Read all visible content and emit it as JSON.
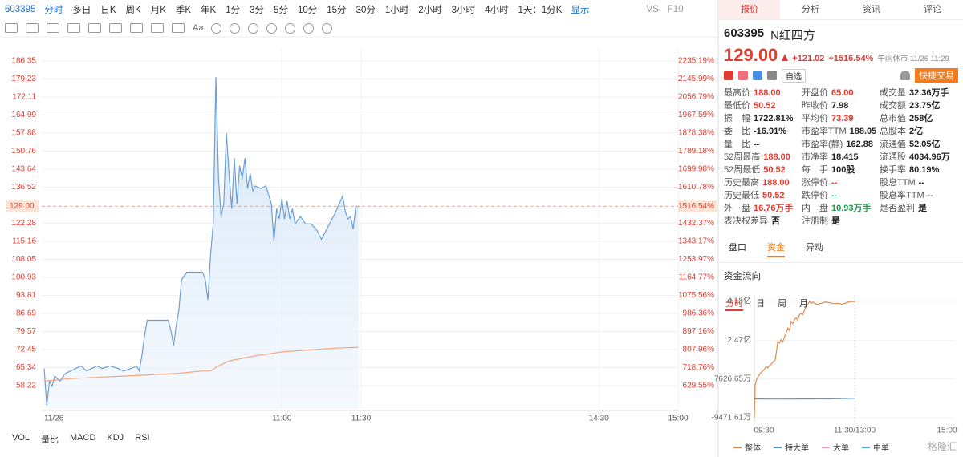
{
  "toolbar": {
    "code": "603395",
    "periods": [
      "分时",
      "多日",
      "日K",
      "周K",
      "月K",
      "季K",
      "年K",
      "1分",
      "3分",
      "5分",
      "10分",
      "15分",
      "30分",
      "1小时",
      "2小时",
      "3小时",
      "4小时",
      "1天：1分K"
    ],
    "display": "显示",
    "vs": "VS",
    "f10": "F10",
    "text_tool": "Aa"
  },
  "indicators": [
    "VOL",
    "量比",
    "MACD",
    "KDJ",
    "RSI"
  ],
  "chart_data": [
    {
      "type": "line",
      "xlim": [
        0,
        240
      ],
      "ylim": [
        49.05,
        191.41
      ],
      "y2lim": [
        514.66,
        2298.62
      ],
      "grid": true,
      "xticks": [
        {
          "value": 0,
          "label": "11/26"
        },
        {
          "value": 90,
          "label": "11:00"
        },
        {
          "value": 120,
          "label": "11:30"
        },
        {
          "value": 210,
          "label": "14:30"
        },
        {
          "value": 240,
          "label": "15:00"
        }
      ],
      "yticks": [
        186.35,
        179.23,
        172.11,
        164.99,
        157.88,
        150.76,
        143.64,
        136.52,
        122.28,
        115.16,
        108.05,
        100.93,
        93.81,
        86.69,
        79.57,
        72.45,
        65.34,
        58.22
      ],
      "y2ticks": [
        {
          "value": 2235.19,
          "label": "2235.19%"
        },
        {
          "value": 2145.99,
          "label": "2145.99%"
        },
        {
          "value": 2056.79,
          "label": "2056.79%"
        },
        {
          "value": 1967.59,
          "label": "1967.59%"
        },
        {
          "value": 1878.38,
          "label": "1878.38%"
        },
        {
          "value": 1789.18,
          "label": "1789.18%"
        },
        {
          "value": 1699.98,
          "label": "1699.98%"
        },
        {
          "value": 1610.78,
          "label": "1610.78%"
        },
        {
          "value": 1432.37,
          "label": "1432.37%"
        },
        {
          "value": 1343.17,
          "label": "1343.17%"
        },
        {
          "value": 1253.97,
          "label": "1253.97%"
        },
        {
          "value": 1164.77,
          "label": "1164.77%"
        },
        {
          "value": 1075.56,
          "label": "1075.56%"
        },
        {
          "value": 986.36,
          "label": "986.36%"
        },
        {
          "value": 897.16,
          "label": "897.16%"
        },
        {
          "value": 807.96,
          "label": "807.96%"
        },
        {
          "value": 718.76,
          "label": "718.76%"
        },
        {
          "value": 629.55,
          "label": "629.55%"
        }
      ],
      "reference": {
        "value": 129,
        "label": "129.00",
        "pct_label": "1516.54%",
        "color": "#f4a582"
      },
      "series": [
        {
          "color": "#6a9fd8",
          "area": true,
          "x": [
            0,
            1,
            2,
            3,
            4,
            6,
            8,
            10,
            12,
            14,
            16,
            18,
            20,
            22,
            25,
            28,
            30,
            33,
            35,
            36,
            37,
            38,
            39,
            42,
            47,
            48,
            49,
            50,
            51,
            52,
            54,
            58,
            60,
            61,
            62,
            63,
            64,
            65,
            66,
            67,
            68,
            69,
            70,
            71,
            72,
            73,
            74,
            75,
            76,
            77,
            78,
            79,
            80,
            82,
            84,
            86,
            87,
            88,
            89,
            90,
            91,
            92,
            93,
            94,
            95,
            97,
            99,
            101,
            103,
            105,
            107,
            110,
            113,
            114,
            115,
            116,
            117,
            118,
            119
          ],
          "values": [
            65,
            50.52,
            60,
            58,
            62,
            60,
            63,
            64,
            65,
            66,
            64,
            65,
            66,
            65,
            66,
            65,
            64,
            65,
            66,
            64,
            70,
            78,
            84,
            84,
            84,
            80,
            74,
            82,
            88,
            100,
            103,
            103,
            103,
            100,
            92,
            110,
            122,
            180,
            140,
            125,
            130,
            158,
            142,
            128,
            148,
            130,
            145,
            140,
            148,
            136,
            142,
            135,
            137,
            136,
            137,
            130,
            115,
            128,
            124,
            132,
            124,
            131,
            124,
            128,
            122,
            125,
            122,
            122,
            120,
            116,
            120,
            126,
            133,
            127,
            124,
            125,
            120,
            129,
            129
          ]
        },
        {
          "color": "#f4a582",
          "x": [
            0,
            10,
            30,
            50,
            60,
            63,
            66,
            70,
            80,
            90,
            100,
            110,
            119
          ],
          "values": [
            60,
            61,
            62,
            63,
            64,
            64,
            66,
            68,
            70,
            71.5,
            72.3,
            73,
            73.39
          ]
        }
      ]
    },
    {
      "type": "line",
      "title": "资金流向",
      "periods": [
        "分时",
        "日",
        "周",
        "月"
      ],
      "xlim": [
        0,
        240
      ],
      "ylim": [
        -9471.61,
        41800
      ],
      "xticks": [
        {
          "value": 0,
          "label": "09:30"
        },
        {
          "value": 120,
          "label": "11:30/13:00"
        },
        {
          "value": 240,
          "label": "15:00"
        }
      ],
      "yticks": [
        {
          "value": 41800,
          "label": "4.18亿"
        },
        {
          "value": 24700,
          "label": "2.47亿"
        },
        {
          "value": 7626.65,
          "label": "7626.65万"
        },
        {
          "value": -9471.61,
          "label": "-9471.61万"
        }
      ],
      "series": [
        {
          "name": "整体",
          "color": "#e08a4e",
          "x": [
            0,
            1,
            3,
            5,
            8,
            10,
            12,
            14,
            16,
            18,
            20,
            22,
            25,
            27,
            28,
            30,
            32,
            34,
            36,
            38,
            40,
            42,
            44,
            46,
            48,
            50,
            52,
            54,
            56,
            58,
            60,
            62,
            64,
            66,
            68,
            70,
            75,
            80,
            85,
            90,
            95,
            100,
            105,
            110,
            115,
            120
          ],
          "values": [
            -9471.61,
            5000,
            7626,
            9000,
            10500,
            11000,
            12000,
            13000,
            12500,
            13500,
            14000,
            15000,
            16000,
            21000,
            24000,
            23500,
            25000,
            24000,
            26000,
            28000,
            30000,
            29000,
            33000,
            32000,
            34000,
            34500,
            33500,
            36000,
            36500,
            36000,
            38000,
            39500,
            40500,
            41800,
            41000,
            41500,
            40500,
            41000,
            41500,
            41200,
            40800,
            41000,
            40500,
            41200,
            41800,
            41700
          ]
        },
        {
          "name": "特大单",
          "color": "#5b9bd5",
          "x": [
            0,
            30,
            60,
            90,
            110,
            120
          ],
          "values": [
            -1200,
            -1250,
            -1200,
            -1150,
            -1000,
            -900
          ]
        },
        {
          "name": "大单",
          "color": "#f2a0c8"
        },
        {
          "name": "中单",
          "color": "#4fb3d9"
        }
      ]
    }
  ],
  "quote": {
    "tabs": [
      "报价",
      "分析",
      "资讯",
      "评论"
    ],
    "code": "603395",
    "name": "N红四方",
    "price": "129.00",
    "change": "+121.02",
    "change_pct": "+1516.54%",
    "status": "午间休市 11/26 11:29",
    "watch": "自选",
    "trade": "快捷交易",
    "stats": [
      [
        {
          "label": "最高价",
          "value": "188.00",
          "color": "#e03c31"
        },
        {
          "label": "开盘价",
          "value": "65.00",
          "color": "#e03c31"
        },
        {
          "label": "成交量",
          "value": "32.36万手",
          "color": "#222"
        }
      ],
      [
        {
          "label": "最低价",
          "value": "50.52",
          "color": "#e03c31"
        },
        {
          "label": "昨收价",
          "value": "7.98",
          "color": "#222"
        },
        {
          "label": "成交额",
          "value": "23.75亿",
          "color": "#222"
        }
      ],
      [
        {
          "label": "振　幅",
          "value": "1722.81%",
          "color": "#222"
        },
        {
          "label": "平均价",
          "value": "73.39",
          "color": "#e03c31"
        },
        {
          "label": "总市值",
          "value": "258亿",
          "color": "#222"
        }
      ],
      [
        {
          "label": "委　比",
          "value": "-16.91%",
          "color": "#222"
        },
        {
          "label": "市盈率TTM",
          "value": "188.05",
          "color": "#222"
        },
        {
          "label": "总股本",
          "value": "2亿",
          "color": "#222"
        }
      ],
      [
        {
          "label": "量　比",
          "value": "--",
          "color": "#222"
        },
        {
          "label": "市盈率(静)",
          "value": "162.88",
          "color": "#222"
        },
        {
          "label": "流通值",
          "value": "52.05亿",
          "color": "#222"
        }
      ],
      [
        {
          "label": "52周最高",
          "value": "188.00",
          "color": "#e03c31"
        },
        {
          "label": "市净率",
          "value": "18.415",
          "color": "#222"
        },
        {
          "label": "流通股",
          "value": "4034.96万",
          "color": "#222"
        }
      ],
      [
        {
          "label": "52周最低",
          "value": "50.52",
          "color": "#e03c31"
        },
        {
          "label": "每　手",
          "value": "100股",
          "color": "#222"
        },
        {
          "label": "换手率",
          "value": "80.19%",
          "color": "#222"
        }
      ],
      [
        {
          "label": "历史最高",
          "value": "188.00",
          "color": "#e03c31"
        },
        {
          "label": "涨停价",
          "value": "--",
          "color": "#e03c31"
        },
        {
          "label": "股息TTM",
          "value": "--",
          "color": "#222"
        }
      ],
      [
        {
          "label": "历史最低",
          "value": "50.52",
          "color": "#e03c31"
        },
        {
          "label": "跌停价",
          "value": "--",
          "color": "#1a9e4b"
        },
        {
          "label": "股息率TTM",
          "value": "--",
          "color": "#222"
        }
      ],
      [
        {
          "label": "外　盘",
          "value": "16.76万手",
          "color": "#e03c31"
        },
        {
          "label": "内　盘",
          "value": "10.93万手",
          "color": "#1a9e4b"
        },
        {
          "label": "是否盈利",
          "value": "是",
          "color": "#222"
        }
      ],
      [
        {
          "label": "表决权差异",
          "value": "否",
          "color": "#222"
        },
        {
          "label": "注册制",
          "value": "是",
          "color": "#222"
        }
      ]
    ],
    "sections": [
      "盘口",
      "资金",
      "异动"
    ],
    "watermark": "格隆汇"
  }
}
